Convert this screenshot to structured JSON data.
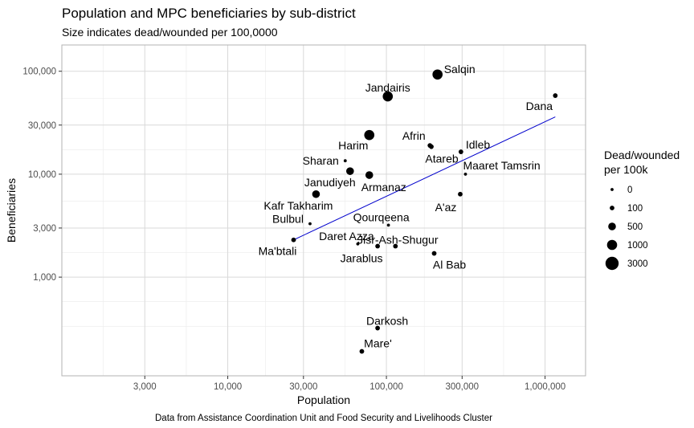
{
  "title": "Population and MPC beneficiaries by sub-district",
  "subtitle": "Size indicates dead/wounded per 100,0000",
  "caption": "Data from Assistance Coordination Unit and Food Security and Livelihoods Cluster",
  "chart_data": {
    "type": "scatter",
    "xlabel": "Population",
    "ylabel": "Beneficiaries",
    "x_scale": "log10",
    "y_scale": "log10",
    "xlim": [
      900,
      1800000
    ],
    "ylim": [
      110,
      180000
    ],
    "x_ticks": [
      3000,
      10000,
      30000,
      100000,
      300000,
      1000000
    ],
    "x_tick_labels": [
      "3,000",
      "10,000",
      "30,000",
      "100,000",
      "300,000",
      "1,000,000"
    ],
    "y_ticks": [
      1000,
      3000,
      10000,
      30000,
      100000
    ],
    "y_tick_labels": [
      "1,000",
      "3,000",
      "10,000",
      "30,000",
      "100,000"
    ],
    "grid": true,
    "points": [
      {
        "label": "Salqin",
        "x": 210000,
        "y": 93000,
        "size": 1000
      },
      {
        "label": "Jandairis",
        "x": 102000,
        "y": 57000,
        "size": 1000
      },
      {
        "label": "Dana",
        "x": 1160000,
        "y": 58000,
        "size": 100
      },
      {
        "label": "Harim",
        "x": 78000,
        "y": 24000,
        "size": 1000
      },
      {
        "label": "Afrin",
        "x": 188000,
        "y": 19000,
        "size": 100
      },
      {
        "label": "Atareb",
        "x": 192000,
        "y": 18500,
        "size": 100
      },
      {
        "label": "Idleb",
        "x": 295000,
        "y": 16500,
        "size": 100
      },
      {
        "label": "Sharan",
        "x": 55000,
        "y": 13500,
        "size": 0
      },
      {
        "label": "Janudiyeh",
        "x": 59000,
        "y": 10700,
        "size": 500
      },
      {
        "label": "Armanaz",
        "x": 78000,
        "y": 9800,
        "size": 500
      },
      {
        "label": "Maaret Tamsrin",
        "x": 315000,
        "y": 10000,
        "size": 0
      },
      {
        "label": "Kafr Takharim",
        "x": 36000,
        "y": 6400,
        "size": 500
      },
      {
        "label": "A'az",
        "x": 292000,
        "y": 6400,
        "size": 100
      },
      {
        "label": "Bulbul",
        "x": 33000,
        "y": 3300,
        "size": 0
      },
      {
        "label": "Qourqeena",
        "x": 103000,
        "y": 3200,
        "size": 0
      },
      {
        "label": "Ma'btali",
        "x": 26000,
        "y": 2300,
        "size": 100
      },
      {
        "label": "Daret Azza",
        "x": 66000,
        "y": 2100,
        "size": 0
      },
      {
        "label": "Jarablus",
        "x": 88000,
        "y": 2000,
        "size": 100
      },
      {
        "label": "Jisr-Ash-Shugur",
        "x": 114000,
        "y": 2000,
        "size": 100
      },
      {
        "label": "Al Bab",
        "x": 200000,
        "y": 1700,
        "size": 100
      },
      {
        "label": "Darkosh",
        "x": 88000,
        "y": 320,
        "size": 100
      },
      {
        "label": "Mare'",
        "x": 70000,
        "y": 190,
        "size": 100
      }
    ],
    "trend_line": {
      "x": [
        26000,
        1160000
      ],
      "y": [
        2300,
        36000
      ],
      "color": "#0000cc"
    },
    "legend": {
      "title_line1": "Dead/wounded",
      "title_line2": "per 100k",
      "placement": "right",
      "entries": [
        {
          "label": "0",
          "size": 0
        },
        {
          "label": "100",
          "size": 100
        },
        {
          "label": "500",
          "size": 500
        },
        {
          "label": "1000",
          "size": 1000
        },
        {
          "label": "3000",
          "size": 3000
        }
      ]
    },
    "colors": {
      "points": "#000000",
      "grid": "#d9d9d9",
      "panel_border": "#b3b3b3"
    }
  }
}
